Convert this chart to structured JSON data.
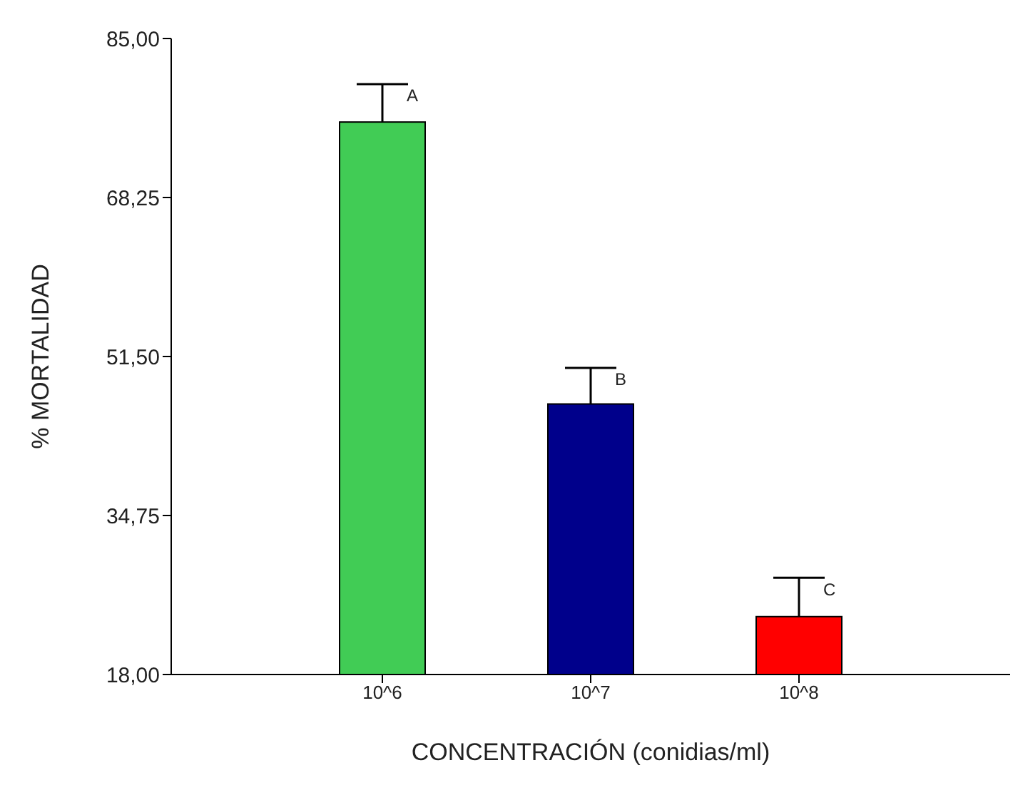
{
  "chart_data": {
    "type": "bar",
    "xlabel": "CONCENTRACIÓN (conidias/ml)",
    "ylabel": "% MORTALIDAD",
    "categories": [
      "10^6",
      "10^7",
      "10^8"
    ],
    "values": [
      76.2,
      46.5,
      24.1
    ],
    "colors": [
      "#41cc55",
      "#00008b",
      "#ff0000"
    ],
    "errors": [
      [
        76.2,
        80.2
      ],
      [
        46.5,
        50.3
      ],
      [
        24.1,
        28.2
      ]
    ],
    "ylim": [
      18,
      85
    ],
    "yticks": [
      {
        "value": 18,
        "label": "18,00"
      },
      {
        "value": 34.75,
        "label": "34,75"
      },
      {
        "value": 51.5,
        "label": "51,50"
      },
      {
        "value": 68.25,
        "label": "68,25"
      },
      {
        "value": 85,
        "label": "85,00"
      }
    ],
    "annotations": [
      {
        "text": "A",
        "x": "10^6",
        "y": 80.2
      },
      {
        "text": "B",
        "x": "10^7",
        "y": 50.3
      },
      {
        "text": "C",
        "x": "10^8",
        "y": 28.2
      }
    ],
    "grid": false,
    "legend": false
  }
}
